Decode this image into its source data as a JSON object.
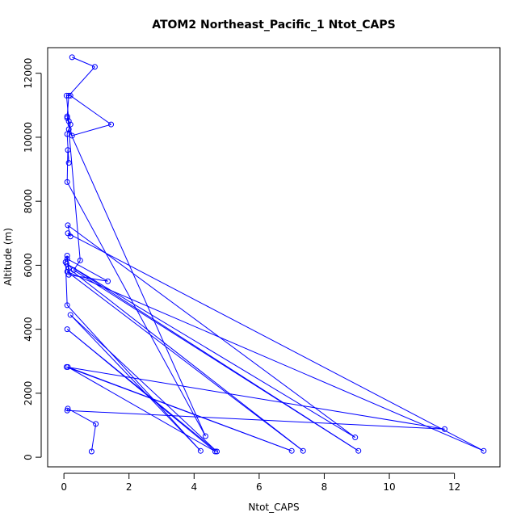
{
  "chart_data": {
    "type": "line",
    "title": "ATOM2 Northeast_Pacific_1 Ntot_CAPS",
    "xlabel": "Ntot_CAPS",
    "ylabel": "Altitude (m)",
    "xlim": [
      -0.5,
      13.4
    ],
    "ylim": [
      -300,
      12800
    ],
    "x_ticks": [
      0,
      2,
      4,
      6,
      8,
      10,
      12
    ],
    "y_ticks": [
      0,
      2000,
      4000,
      6000,
      8000,
      10000,
      12000
    ],
    "grid": false,
    "legend": "none",
    "colors": {
      "series": "#0000ff",
      "axis": "#000000",
      "background": "#ffffff"
    },
    "series": [
      {
        "x": [
          0.85,
          0.98,
          0.12,
          0.1,
          11.7,
          0.08,
          7.0,
          0.12,
          4.65,
          0.1,
          4.7,
          0.2,
          4.2,
          0.1,
          0.05,
          0.1,
          0.15,
          1.35,
          0.1,
          0.15,
          7.35,
          0.1,
          12.9,
          0.12,
          0.2,
          0.12,
          8.95,
          0.08,
          9.05,
          0.3,
          0.5,
          0.15,
          4.35,
          0.1,
          0.12,
          0.15,
          0.1,
          0.2,
          0.1,
          0.25,
          1.45,
          0.2,
          0.08,
          0.15,
          0.1,
          0.15,
          0.95,
          0.25
        ],
        "y": [
          180,
          1040,
          1520,
          1460,
          880,
          2820,
          200,
          2820,
          180,
          4000,
          180,
          4450,
          200,
          4750,
          6100,
          6300,
          5700,
          5500,
          6200,
          5900,
          200,
          5800,
          200,
          7000,
          6900,
          7250,
          620,
          6050,
          200,
          5850,
          6150,
          10250,
          660,
          8600,
          9600,
          9200,
          10100,
          10400,
          10600,
          10050,
          10400,
          11300,
          11300,
          10500,
          10650,
          11300,
          12200,
          12500
        ]
      }
    ]
  }
}
